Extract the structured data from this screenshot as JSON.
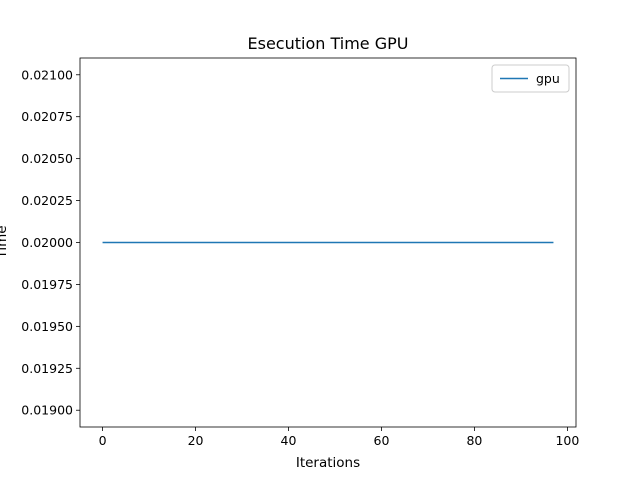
{
  "chart_data": {
    "type": "line",
    "title": "Esecution Time GPU",
    "xlabel": "Iterations",
    "ylabel": "Time",
    "xlim": [
      -4.85,
      101.85
    ],
    "ylim": [
      0.0189,
      0.0211
    ],
    "x_ticks": [
      0,
      20,
      40,
      60,
      80,
      100
    ],
    "x_tick_labels": [
      "0",
      "20",
      "40",
      "60",
      "80",
      "100"
    ],
    "y_ticks": [
      0.019,
      0.01925,
      0.0195,
      0.01975,
      0.02,
      0.02025,
      0.0205,
      0.02075,
      0.021
    ],
    "y_tick_labels": [
      "0.01900",
      "0.01925",
      "0.01950",
      "0.01975",
      "0.02000",
      "0.02025",
      "0.02050",
      "0.02075",
      "0.02100"
    ],
    "grid": false,
    "legend_position": "top-right",
    "series": [
      {
        "name": "gpu",
        "color": "#1f77b4",
        "x": [
          0,
          97
        ],
        "y": [
          0.02,
          0.02
        ]
      }
    ]
  }
}
